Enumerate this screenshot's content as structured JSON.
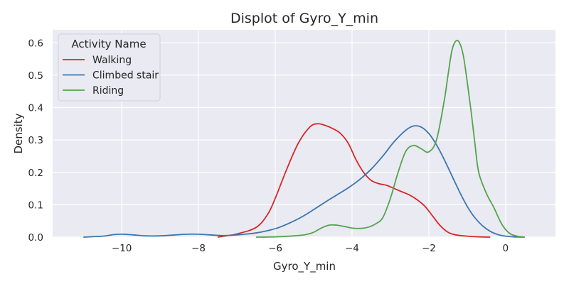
{
  "chart_data": {
    "type": "line",
    "title": "Displot of Gyro_Y_min",
    "xlabel": "Gyro_Y_min",
    "ylabel": "Density",
    "xlim": [
      -11.8,
      1.3
    ],
    "ylim": [
      0,
      0.64
    ],
    "xticks": [
      -10,
      -8,
      -6,
      -4,
      -2,
      0
    ],
    "xtick_labels": [
      "−10",
      "−8",
      "−6",
      "−4",
      "−2",
      "0"
    ],
    "yticks": [
      0.0,
      0.1,
      0.2,
      0.3,
      0.4,
      0.5,
      0.6
    ],
    "ytick_labels": [
      "0.0",
      "0.1",
      "0.2",
      "0.3",
      "0.4",
      "0.5",
      "0.6"
    ],
    "grid": true,
    "background": "#eaeaf2",
    "legend": {
      "title": "Activity Name",
      "position": "top-left"
    },
    "series": [
      {
        "name": "Walking",
        "color": "#d62728",
        "x": [
          -7.5,
          -7.0,
          -6.5,
          -6.2,
          -6.0,
          -5.7,
          -5.4,
          -5.1,
          -4.9,
          -4.7,
          -4.5,
          -4.3,
          -4.1,
          -3.9,
          -3.7,
          -3.5,
          -3.3,
          -3.1,
          -2.9,
          -2.7,
          -2.5,
          -2.3,
          -2.1,
          -1.9,
          -1.7,
          -1.5,
          -1.3,
          -1.0,
          -0.7,
          -0.4
        ],
        "y": [
          0.0,
          0.01,
          0.03,
          0.07,
          0.12,
          0.21,
          0.29,
          0.34,
          0.35,
          0.345,
          0.335,
          0.32,
          0.29,
          0.24,
          0.2,
          0.175,
          0.165,
          0.16,
          0.15,
          0.14,
          0.13,
          0.115,
          0.095,
          0.065,
          0.035,
          0.015,
          0.007,
          0.003,
          0.001,
          0.0
        ]
      },
      {
        "name": "Climbed stair",
        "color": "#3a76af",
        "x": [
          -11.0,
          -10.5,
          -10.2,
          -10.0,
          -9.7,
          -9.4,
          -9.0,
          -8.6,
          -8.3,
          -8.0,
          -7.7,
          -7.4,
          -7.1,
          -6.8,
          -6.5,
          -6.2,
          -5.9,
          -5.6,
          -5.3,
          -5.0,
          -4.7,
          -4.4,
          -4.1,
          -3.8,
          -3.5,
          -3.2,
          -2.9,
          -2.6,
          -2.4,
          -2.2,
          -2.0,
          -1.8,
          -1.6,
          -1.4,
          -1.2,
          -1.0,
          -0.8,
          -0.6,
          -0.4,
          -0.2,
          0.0,
          0.2,
          0.5
        ],
        "y": [
          0.0,
          0.003,
          0.008,
          0.009,
          0.007,
          0.004,
          0.004,
          0.007,
          0.009,
          0.009,
          0.007,
          0.005,
          0.006,
          0.009,
          0.013,
          0.02,
          0.03,
          0.045,
          0.063,
          0.085,
          0.108,
          0.13,
          0.152,
          0.178,
          0.21,
          0.25,
          0.295,
          0.33,
          0.343,
          0.34,
          0.32,
          0.285,
          0.24,
          0.19,
          0.14,
          0.095,
          0.06,
          0.035,
          0.018,
          0.008,
          0.003,
          0.001,
          0.0
        ]
      },
      {
        "name": "Riding",
        "color": "#55a34e",
        "x": [
          -6.5,
          -6.0,
          -5.5,
          -5.2,
          -5.0,
          -4.8,
          -4.6,
          -4.4,
          -4.2,
          -4.0,
          -3.8,
          -3.6,
          -3.4,
          -3.2,
          -3.0,
          -2.8,
          -2.6,
          -2.4,
          -2.2,
          -2.0,
          -1.8,
          -1.6,
          -1.5,
          -1.4,
          -1.3,
          -1.2,
          -1.1,
          -1.0,
          -0.9,
          -0.8,
          -0.7,
          -0.5,
          -0.3,
          -0.1,
          0.1,
          0.3,
          0.5
        ],
        "y": [
          0.0,
          0.001,
          0.004,
          0.008,
          0.015,
          0.028,
          0.037,
          0.037,
          0.033,
          0.028,
          0.027,
          0.03,
          0.04,
          0.06,
          0.12,
          0.2,
          0.265,
          0.283,
          0.273,
          0.263,
          0.3,
          0.42,
          0.5,
          0.575,
          0.605,
          0.6,
          0.56,
          0.48,
          0.39,
          0.29,
          0.2,
          0.135,
          0.09,
          0.04,
          0.012,
          0.003,
          0.0
        ]
      }
    ]
  }
}
